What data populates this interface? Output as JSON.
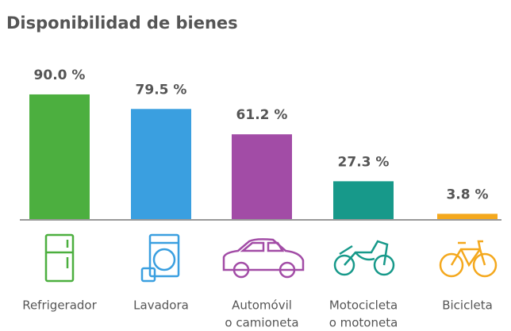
{
  "chart_data": {
    "type": "bar",
    "title": "Disponibilidad de bienes",
    "categories": [
      [
        "Refrigerador"
      ],
      [
        "Lavadora"
      ],
      [
        "Automóvil",
        "o camioneta"
      ],
      [
        "Motocicleta",
        "o motoneta"
      ],
      [
        "Bicicleta"
      ]
    ],
    "values": [
      90.0,
      79.5,
      61.2,
      27.3,
      3.8
    ],
    "value_labels": [
      "90.0 %",
      "79.5 %",
      "61.2 %",
      "27.3 %",
      "3.8 %"
    ],
    "colors": [
      "#4caf3f",
      "#3a9fe0",
      "#a24ca6",
      "#17998a",
      "#f4a81d"
    ]
  }
}
